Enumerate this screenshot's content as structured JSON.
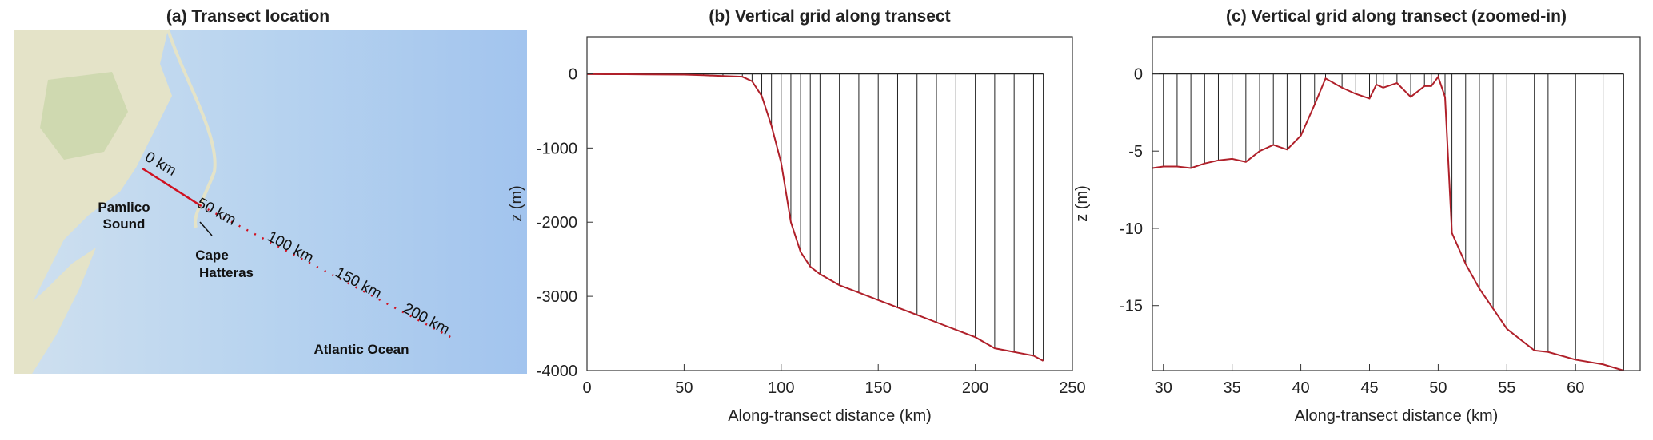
{
  "map": {
    "title": "(a) Transect location",
    "labels": [
      "0 km",
      "50 km",
      "100 km",
      "150 km",
      "200 km"
    ],
    "places": [
      "Pamlico",
      "Sound",
      "Cape",
      "Hatteras",
      "Atlantic Ocean"
    ]
  },
  "chart_data": [
    {
      "type": "line",
      "title": "(b)  Vertical grid along transect",
      "xlabel": "Along-transect distance (km)",
      "ylabel": "z (m)",
      "color": "#b0202a",
      "x": [
        0,
        10,
        20,
        30,
        40,
        50,
        60,
        70,
        80,
        85,
        90,
        95,
        100,
        105,
        110,
        115,
        120,
        130,
        140,
        150,
        160,
        170,
        180,
        190,
        200,
        210,
        220,
        230,
        235
      ],
      "values": [
        -5,
        -6,
        -6,
        -8,
        -10,
        -12,
        -20,
        -30,
        -40,
        -100,
        -300,
        -700,
        -1200,
        -2000,
        -2400,
        -2600,
        -2700,
        -2850,
        -2950,
        -3050,
        -3150,
        -3250,
        -3350,
        -3450,
        -3550,
        -3700,
        -3750,
        -3800,
        -3870
      ],
      "xlim": [
        0,
        250
      ],
      "ylim": [
        -4000,
        500
      ],
      "xticks": [
        0,
        50,
        100,
        150,
        200,
        250
      ],
      "yticks": [
        -4000,
        -3000,
        -2000,
        -1000,
        0
      ]
    },
    {
      "type": "line",
      "title": "(c)  Vertical grid along transect (zoomed-in)",
      "xlabel": "Along-transect distance (km)",
      "ylabel": "z (m)",
      "color": "#b0202a",
      "x": [
        29.2,
        30,
        31,
        32,
        33,
        34,
        35,
        36,
        37,
        38,
        39,
        40,
        41,
        41.8,
        43,
        44,
        45,
        45.5,
        46,
        47,
        48,
        49,
        49.5,
        50,
        50.5,
        51,
        52,
        53,
        54,
        55,
        57,
        58,
        60,
        62,
        63.5
      ],
      "values": [
        -6.1,
        -6,
        -6,
        -6.1,
        -5.8,
        -5.6,
        -5.5,
        -5.7,
        -5,
        -4.6,
        -4.9,
        -4,
        -2,
        -0.3,
        -0.9,
        -1.3,
        -1.6,
        -0.7,
        -0.9,
        -0.6,
        -1.5,
        -0.8,
        -0.8,
        -0.2,
        -1.5,
        -10.3,
        -12.3,
        -13.9,
        -15.2,
        -16.5,
        -17.9,
        -18,
        -18.5,
        -18.8,
        -19.2
      ],
      "xlim": [
        29.2,
        64.7
      ],
      "ylim": [
        -19.2,
        2.4
      ],
      "xticks": [
        30,
        35,
        40,
        45,
        50,
        55,
        60
      ],
      "yticks": [
        -15,
        -10,
        -5,
        0
      ]
    }
  ]
}
